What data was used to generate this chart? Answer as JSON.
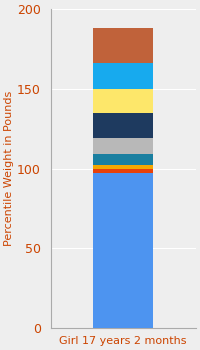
{
  "category": "Girl 17 years 2 months",
  "segments": [
    {
      "value": 97,
      "color": "#4d94f0"
    },
    {
      "value": 3,
      "color": "#e8420a"
    },
    {
      "value": 2,
      "color": "#f5a800"
    },
    {
      "value": 7,
      "color": "#1a7fa0"
    },
    {
      "value": 10,
      "color": "#b8b8b8"
    },
    {
      "value": 16,
      "color": "#1e3a5f"
    },
    {
      "value": 15,
      "color": "#fde76a"
    },
    {
      "value": 16,
      "color": "#17aaee"
    },
    {
      "value": 22,
      "color": "#c0623a"
    }
  ],
  "ylabel": "Percentile Weight in Pounds",
  "ylim": [
    0,
    200
  ],
  "yticks": [
    0,
    50,
    100,
    150,
    200
  ],
  "background_color": "#eeeeee",
  "tick_color": "#cc4400",
  "label_color": "#cc4400",
  "xlabel_fontsize": 8,
  "ylabel_fontsize": 8,
  "tick_fontsize": 9,
  "bar_width": 0.5,
  "grid_color": "#ffffff",
  "spine_color": "#aaaaaa"
}
